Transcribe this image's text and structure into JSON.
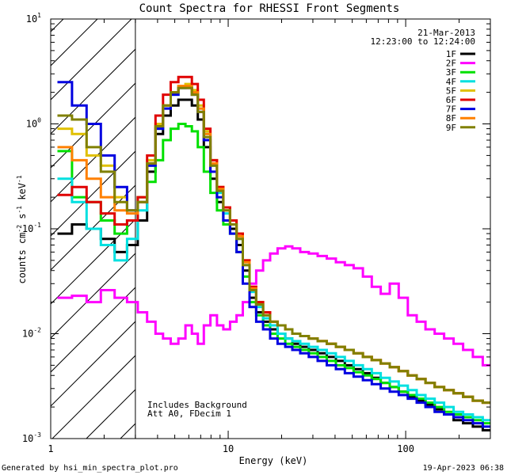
{
  "chart_data": {
    "type": "line",
    "title": "Count Spectra for RHESSI Front Segments",
    "xlabel": "Energy (keV)",
    "ylabel_main": "counts cm",
    "ylabel_exp1": "-2",
    "ylabel_mid": " s",
    "ylabel_exp2": "-1",
    "ylabel_end": " keV",
    "ylabel_exp3": "-1",
    "x_scale": "log",
    "y_scale": "log",
    "xlim": [
      1,
      300
    ],
    "ylim": [
      0.001,
      10
    ],
    "x_ticks": [
      {
        "value": 1,
        "label": "1"
      },
      {
        "value": 10,
        "label": "10"
      },
      {
        "value": 100,
        "label": "100"
      }
    ],
    "y_ticks": [
      {
        "value": 0.001,
        "base": "10",
        "exp": "-3"
      },
      {
        "value": 0.01,
        "base": "10",
        "exp": "-2"
      },
      {
        "value": 0.1,
        "base": "10",
        "exp": "-1"
      },
      {
        "value": 1,
        "base": "10",
        "exp": "0"
      },
      {
        "value": 10,
        "base": "10",
        "exp": "1"
      }
    ],
    "excluded_region": {
      "from": 1,
      "to": 3
    },
    "date": "21-Mar-2013",
    "time_range": "12:23:00 to 12:24:00",
    "annotations": [
      "Includes Background",
      "Att A0, FDecim 1"
    ],
    "legend_position": "top-right",
    "energies": [
      1.2,
      1.45,
      1.75,
      2.1,
      2.5,
      2.9,
      3.3,
      3.7,
      4.1,
      4.5,
      5.0,
      5.5,
      6.0,
      6.5,
      7.0,
      7.6,
      8.3,
      9.0,
      9.8,
      10.7,
      11.6,
      12.6,
      13.8,
      15.0,
      16.5,
      18.0,
      20,
      22,
      24,
      27,
      30,
      34,
      38,
      43,
      48,
      54,
      61,
      68,
      77,
      86,
      97,
      109,
      122,
      137,
      155,
      175,
      198,
      224,
      255,
      290
    ],
    "series": [
      {
        "name": "1F",
        "color": "#000000",
        "values": [
          0.09,
          0.11,
          0.1,
          0.08,
          0.06,
          0.07,
          0.12,
          0.35,
          0.8,
          1.2,
          1.5,
          1.7,
          1.7,
          1.5,
          1.1,
          0.6,
          0.3,
          0.18,
          0.12,
          0.1,
          0.07,
          0.04,
          0.022,
          0.016,
          0.013,
          0.011,
          0.01,
          0.009,
          0.008,
          0.0075,
          0.007,
          0.0065,
          0.006,
          0.0055,
          0.005,
          0.0046,
          0.0042,
          0.0038,
          0.0034,
          0.0031,
          0.0028,
          0.0025,
          0.0023,
          0.0021,
          0.0019,
          0.0017,
          0.0015,
          0.0014,
          0.0013,
          0.0012
        ]
      },
      {
        "name": "2F",
        "color": "#ff00ff",
        "values": [
          0.022,
          0.023,
          0.02,
          0.026,
          0.022,
          0.02,
          0.016,
          0.013,
          0.01,
          0.009,
          0.008,
          0.009,
          0.012,
          0.01,
          0.008,
          0.012,
          0.015,
          0.012,
          0.011,
          0.013,
          0.015,
          0.02,
          0.03,
          0.04,
          0.05,
          0.058,
          0.065,
          0.068,
          0.065,
          0.06,
          0.058,
          0.055,
          0.052,
          0.048,
          0.045,
          0.042,
          0.035,
          0.028,
          0.024,
          0.03,
          0.022,
          0.015,
          0.013,
          0.011,
          0.01,
          0.009,
          0.008,
          0.007,
          0.006,
          0.005
        ]
      },
      {
        "name": "3F",
        "color": "#00e000",
        "values": [
          0.55,
          0.2,
          0.18,
          0.12,
          0.09,
          0.12,
          0.2,
          0.28,
          0.45,
          0.7,
          0.9,
          1.0,
          0.95,
          0.85,
          0.6,
          0.35,
          0.22,
          0.15,
          0.11,
          0.09,
          0.06,
          0.035,
          0.02,
          0.015,
          0.012,
          0.01,
          0.009,
          0.008,
          0.0075,
          0.007,
          0.0065,
          0.006,
          0.0055,
          0.005,
          0.0047,
          0.0043,
          0.004,
          0.0037,
          0.0034,
          0.0031,
          0.0028,
          0.0026,
          0.0024,
          0.0022,
          0.002,
          0.0018,
          0.0017,
          0.0016,
          0.0015,
          0.0014
        ]
      },
      {
        "name": "4F",
        "color": "#00e0e0",
        "values": [
          0.3,
          0.18,
          0.1,
          0.07,
          0.05,
          0.08,
          0.15,
          0.4,
          0.9,
          1.4,
          1.9,
          2.2,
          2.3,
          2.0,
          1.4,
          0.8,
          0.4,
          0.22,
          0.14,
          0.11,
          0.08,
          0.045,
          0.025,
          0.018,
          0.014,
          0.012,
          0.01,
          0.009,
          0.0085,
          0.008,
          0.0075,
          0.007,
          0.0065,
          0.006,
          0.0055,
          0.005,
          0.0046,
          0.0042,
          0.0038,
          0.0035,
          0.0032,
          0.0029,
          0.0026,
          0.0024,
          0.0022,
          0.002,
          0.0018,
          0.0017,
          0.0016,
          0.0015
        ]
      },
      {
        "name": "5F",
        "color": "#e0c000",
        "values": [
          0.9,
          0.8,
          0.5,
          0.4,
          0.2,
          0.15,
          0.2,
          0.45,
          1.0,
          1.5,
          2.0,
          2.3,
          2.4,
          2.1,
          1.5,
          0.85,
          0.45,
          0.25,
          0.16,
          0.12,
          0.09,
          0.05,
          0.028,
          0.02,
          0.016,
          0.013,
          0.012,
          0.011,
          0.01,
          0.0095,
          0.009,
          0.0085,
          0.008,
          0.0075,
          0.007,
          0.0065,
          0.006,
          0.0056,
          0.0052,
          0.0048,
          0.0044,
          0.004,
          0.0037,
          0.0034,
          0.0031,
          0.0029,
          0.0027,
          0.0025,
          0.0023,
          0.0022
        ]
      },
      {
        "name": "6F",
        "color": "#e00000",
        "values": [
          0.21,
          0.25,
          0.18,
          0.14,
          0.11,
          0.12,
          0.2,
          0.5,
          1.2,
          1.9,
          2.5,
          2.8,
          2.8,
          2.4,
          1.7,
          0.9,
          0.45,
          0.25,
          0.16,
          0.12,
          0.09,
          0.05,
          0.028,
          0.02,
          0.016,
          0.013,
          0.012,
          0.011,
          0.01,
          0.0095,
          0.009,
          0.0085,
          0.008,
          0.0075,
          0.007,
          0.0065,
          0.006,
          0.0056,
          0.0052,
          0.0048,
          0.0044,
          0.004,
          0.0037,
          0.0034,
          0.0031,
          0.0029,
          0.0027,
          0.0025,
          0.0023,
          0.0022
        ]
      },
      {
        "name": "7F",
        "color": "#0000e0",
        "values": [
          2.5,
          1.5,
          1.0,
          0.5,
          0.25,
          0.15,
          0.18,
          0.4,
          0.9,
          1.4,
          1.9,
          2.2,
          2.2,
          1.9,
          1.3,
          0.7,
          0.35,
          0.2,
          0.12,
          0.09,
          0.06,
          0.03,
          0.018,
          0.013,
          0.011,
          0.009,
          0.008,
          0.0075,
          0.007,
          0.0065,
          0.006,
          0.0055,
          0.005,
          0.0046,
          0.0042,
          0.0039,
          0.0036,
          0.0033,
          0.003,
          0.0028,
          0.0026,
          0.0024,
          0.0022,
          0.002,
          0.0018,
          0.0017,
          0.0016,
          0.0015,
          0.0014,
          0.0013
        ]
      },
      {
        "name": "8F",
        "color": "#ff8000",
        "values": [
          0.6,
          0.45,
          0.3,
          0.2,
          0.15,
          0.14,
          0.18,
          0.42,
          0.95,
          1.5,
          2.0,
          2.3,
          2.3,
          2.0,
          1.4,
          0.8,
          0.42,
          0.24,
          0.15,
          0.11,
          0.085,
          0.048,
          0.027,
          0.019,
          0.015,
          0.013,
          0.012,
          0.011,
          0.01,
          0.0095,
          0.009,
          0.0085,
          0.008,
          0.0075,
          0.007,
          0.0065,
          0.006,
          0.0056,
          0.0052,
          0.0048,
          0.0044,
          0.004,
          0.0037,
          0.0034,
          0.0031,
          0.0029,
          0.0027,
          0.0025,
          0.0023,
          0.0022
        ]
      },
      {
        "name": "9F",
        "color": "#808000",
        "values": [
          1.2,
          1.1,
          0.6,
          0.35,
          0.18,
          0.15,
          0.18,
          0.42,
          0.95,
          1.5,
          2.0,
          2.2,
          2.2,
          1.9,
          1.3,
          0.75,
          0.4,
          0.23,
          0.15,
          0.11,
          0.08,
          0.045,
          0.026,
          0.019,
          0.015,
          0.013,
          0.012,
          0.011,
          0.01,
          0.0095,
          0.009,
          0.0085,
          0.008,
          0.0075,
          0.007,
          0.0065,
          0.006,
          0.0056,
          0.0052,
          0.0048,
          0.0044,
          0.004,
          0.0037,
          0.0034,
          0.0031,
          0.0029,
          0.0027,
          0.0025,
          0.0023,
          0.0022
        ]
      }
    ]
  },
  "footer": {
    "generated_by": "Generated by hsi_min_spectra_plot.pro",
    "timestamp": "19-Apr-2023 06:38"
  }
}
